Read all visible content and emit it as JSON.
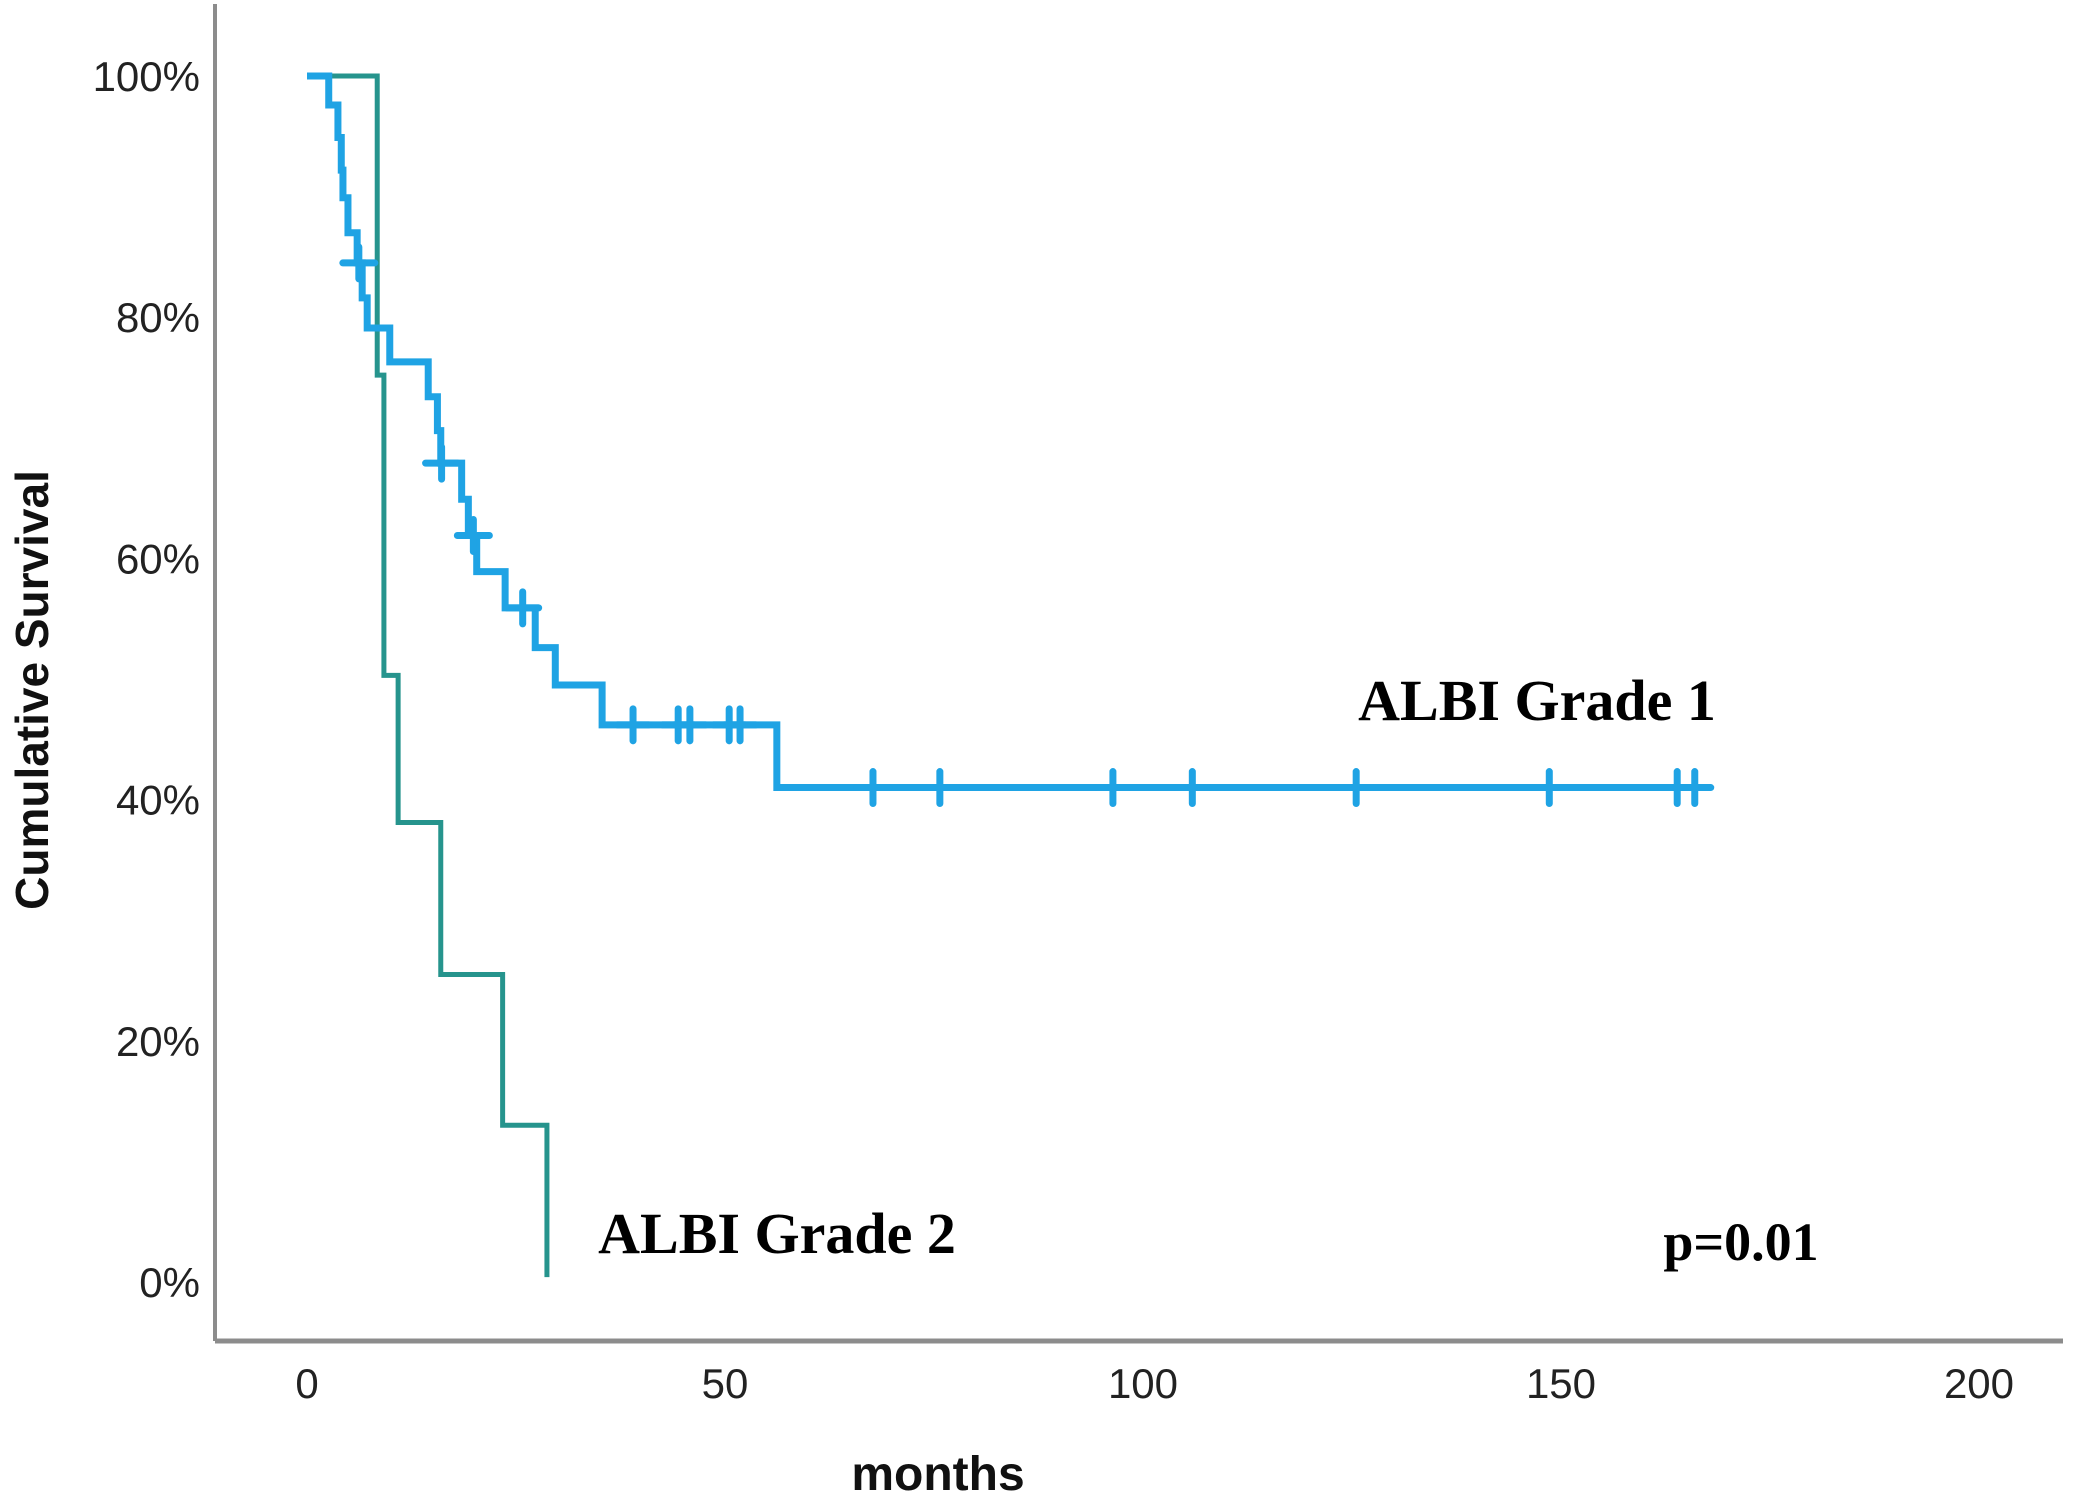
{
  "figure": {
    "y_axis_title": "Cumulative Survival",
    "x_axis_title": "months",
    "series1_label": "ALBI Grade 1",
    "series2_label": "ALBI Grade 2",
    "p_value_label": "p=0.01",
    "background_color": "#ffffff",
    "axis_color": "#8c8c8c"
  },
  "chart_data": {
    "type": "line",
    "subtype": "kaplan-meier-step-curves",
    "title": "",
    "xlabel": "months",
    "ylabel": "Cumulative Survival",
    "xlim": [
      0,
      210
    ],
    "ylim_percent": [
      0,
      100
    ],
    "x_ticks": [
      0,
      50,
      100,
      150,
      200
    ],
    "y_ticks_percent": [
      0,
      20,
      40,
      60,
      80,
      100
    ],
    "y_tick_label_format": "percent",
    "grid": false,
    "legend_position": "inline-annotations",
    "p_value_text": "p=0.01",
    "series": [
      {
        "name": "ALBI Grade 1",
        "color": "#1FA3E4",
        "line_width": 7,
        "steps_time_survivalpct": [
          [
            0,
            100
          ],
          [
            2.6,
            97.6
          ],
          [
            3.7,
            94.9
          ],
          [
            4.1,
            92.2
          ],
          [
            4.3,
            89.9
          ],
          [
            4.9,
            87.0
          ],
          [
            6.0,
            84.5
          ],
          [
            6.6,
            81.6
          ],
          [
            7.2,
            79.1
          ],
          [
            9.9,
            76.3
          ],
          [
            14.5,
            73.4
          ],
          [
            15.6,
            70.6
          ],
          [
            16.0,
            67.9
          ],
          [
            18.5,
            64.9
          ],
          [
            19.3,
            61.9
          ],
          [
            20.3,
            58.9
          ],
          [
            23.7,
            55.9
          ],
          [
            27.3,
            52.6
          ],
          [
            29.7,
            49.5
          ],
          [
            35.3,
            46.2
          ],
          [
            56.2,
            41.0
          ]
        ],
        "end_time": 167.2,
        "censor_marks_time_survivalpct": [
          [
            6.2,
            84.5
          ],
          [
            16.1,
            67.9
          ],
          [
            19.9,
            61.9
          ],
          [
            25.8,
            55.9
          ],
          [
            39.0,
            46.2
          ],
          [
            44.4,
            46.2
          ],
          [
            45.8,
            46.2
          ],
          [
            50.5,
            46.2
          ],
          [
            51.8,
            46.2
          ],
          [
            67.7,
            41.0
          ],
          [
            75.7,
            41.0
          ],
          [
            96.4,
            41.0
          ],
          [
            105.9,
            41.0
          ],
          [
            125.5,
            41.0
          ],
          [
            148.6,
            41.0
          ],
          [
            163.9,
            41.0
          ],
          [
            166.0,
            41.0
          ]
        ]
      },
      {
        "name": "ALBI Grade 2",
        "color": "#26948D",
        "line_width": 5,
        "steps_time_survivalpct": [
          [
            0,
            100
          ],
          [
            8.4,
            75.2
          ],
          [
            9.2,
            50.3
          ],
          [
            10.9,
            38.1
          ],
          [
            16.0,
            25.5
          ],
          [
            23.4,
            13.0
          ],
          [
            28.7,
            0.4
          ]
        ],
        "end_time": 28.7,
        "censor_marks_time_survivalpct": []
      }
    ],
    "annotations": [
      {
        "text": "ALBI Grade 1",
        "time": 147.1,
        "survival_pct": 48.3
      },
      {
        "text": "ALBI Grade 2",
        "time": 56.2,
        "survival_pct": 4.1
      },
      {
        "text": "p=0.01",
        "time": 171.5,
        "survival_pct": 3.3
      }
    ]
  }
}
